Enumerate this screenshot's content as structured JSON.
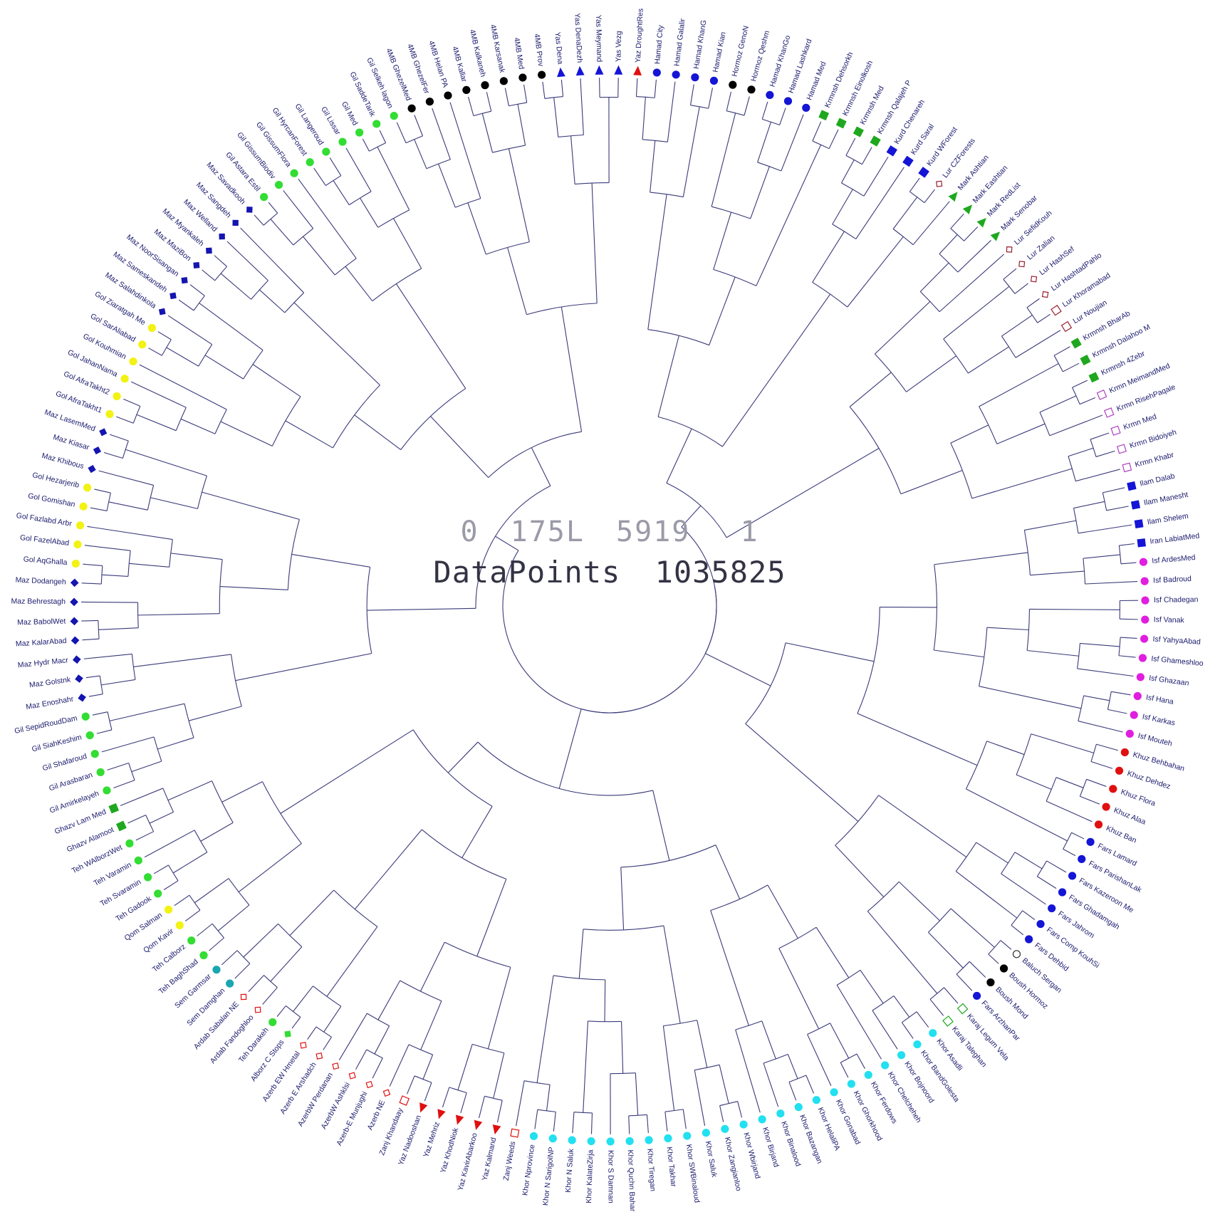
{
  "header": {
    "counter_a": "0",
    "counter_b": "175L",
    "counter_c": "5919",
    "counter_d": "1",
    "datapoints_label": "DataPoints",
    "datapoints_value": "1035825"
  },
  "colors": {
    "black": "#000000",
    "blue": "#1515d6",
    "red": "#e01010",
    "green": "#1fa81f",
    "lime": "#33dd33",
    "magenta": "#e01ee0",
    "purple": "#b040c0",
    "maroon": "#9a2030",
    "cyan": "#22e0f0",
    "yellow": "#f2f214",
    "teal": "#1aa6b0",
    "darkblue": "#1515b0",
    "gray": "#333333"
  },
  "leaves": [
    {
      "label": "Yaz DroughtRes",
      "marker": "triangle",
      "color": "red"
    },
    {
      "label": "Hamad City",
      "marker": "circle",
      "color": "blue"
    },
    {
      "label": "Hamad Galalir",
      "marker": "circle",
      "color": "blue"
    },
    {
      "label": "Hamad KhanG",
      "marker": "circle",
      "color": "blue"
    },
    {
      "label": "Hamad Kian",
      "marker": "circle",
      "color": "blue"
    },
    {
      "label": "Hormoz GenoN",
      "marker": "circle",
      "color": "black"
    },
    {
      "label": "Hormoz Qeshm",
      "marker": "circle",
      "color": "black"
    },
    {
      "label": "Hamad KhanGo",
      "marker": "circle",
      "color": "blue"
    },
    {
      "label": "Hamad Lashkard",
      "marker": "circle",
      "color": "blue"
    },
    {
      "label": "Hamad Med",
      "marker": "circle",
      "color": "blue"
    },
    {
      "label": "Krmnsh Dehsorkh",
      "marker": "square",
      "color": "green"
    },
    {
      "label": "Krmnsh Einolkosh",
      "marker": "square",
      "color": "green"
    },
    {
      "label": "Krmnsh Med",
      "marker": "square",
      "color": "green"
    },
    {
      "label": "Krmnsh Qalajeh P",
      "marker": "square",
      "color": "green"
    },
    {
      "label": "Kurd Chenareh",
      "marker": "square",
      "color": "blue"
    },
    {
      "label": "Kurd Saral",
      "marker": "square",
      "color": "blue"
    },
    {
      "label": "Kurd WForest",
      "marker": "square",
      "color": "blue"
    },
    {
      "label": "Lur CZForests",
      "marker": "diamond-open",
      "color": "maroon"
    },
    {
      "label": "Mark Ashtian",
      "marker": "triangle",
      "color": "green"
    },
    {
      "label": "Mark Eashtian",
      "marker": "triangle",
      "color": "green"
    },
    {
      "label": "Mark RedList",
      "marker": "triangle",
      "color": "green"
    },
    {
      "label": "Mark Senobar",
      "marker": "triangle",
      "color": "green"
    },
    {
      "label": "Lur SefidKouh",
      "marker": "diamond-open",
      "color": "maroon"
    },
    {
      "label": "Lur Zalian",
      "marker": "diamond-open",
      "color": "maroon"
    },
    {
      "label": "Lur HashSef",
      "marker": "diamond-open",
      "color": "maroon"
    },
    {
      "label": "Lur HashtadPahlo",
      "marker": "diamond-open",
      "color": "maroon"
    },
    {
      "label": "Lur Khoramabad",
      "marker": "square-open",
      "color": "maroon"
    },
    {
      "label": "Lur Noujian",
      "marker": "square-open",
      "color": "maroon"
    },
    {
      "label": "Krmnsh BharAb",
      "marker": "square",
      "color": "green"
    },
    {
      "label": "Krmnsh Dalahoo M",
      "marker": "square",
      "color": "green"
    },
    {
      "label": "Krmnsh 4Zebr",
      "marker": "square",
      "color": "green"
    },
    {
      "label": "Krmn MeimandMed",
      "marker": "square-open",
      "color": "purple"
    },
    {
      "label": "Krmn RisehPaqale",
      "marker": "square-open",
      "color": "purple"
    },
    {
      "label": "Krmn Med",
      "marker": "square-open",
      "color": "purple"
    },
    {
      "label": "Krmn Bidoiyeh",
      "marker": "square-open",
      "color": "purple"
    },
    {
      "label": "Krmn Khabr",
      "marker": "square-open",
      "color": "purple"
    },
    {
      "label": "Ilam Dalab",
      "marker": "square",
      "color": "blue"
    },
    {
      "label": "Ilam Manesht",
      "marker": "square",
      "color": "blue"
    },
    {
      "label": "Ilam Shelem",
      "marker": "square",
      "color": "blue"
    },
    {
      "label": "Iran LabiatMed",
      "marker": "square",
      "color": "blue"
    },
    {
      "label": "Isf ArdesMed",
      "marker": "circle",
      "color": "magenta"
    },
    {
      "label": "Isf Badroud",
      "marker": "circle",
      "color": "magenta"
    },
    {
      "label": "Isf Chadegan",
      "marker": "circle",
      "color": "magenta"
    },
    {
      "label": "Isf Vanak",
      "marker": "circle",
      "color": "magenta"
    },
    {
      "label": "Isf YahyaAbad",
      "marker": "circle",
      "color": "magenta"
    },
    {
      "label": "Isf Ghameshloo",
      "marker": "circle",
      "color": "magenta"
    },
    {
      "label": "Isf Ghazaan",
      "marker": "circle",
      "color": "magenta"
    },
    {
      "label": "Isf Hana",
      "marker": "circle",
      "color": "magenta"
    },
    {
      "label": "Isf Karkas",
      "marker": "circle",
      "color": "magenta"
    },
    {
      "label": "Isf Mouteh",
      "marker": "circle",
      "color": "magenta"
    },
    {
      "label": "Khuz Behbahan",
      "marker": "circle",
      "color": "red"
    },
    {
      "label": "Khuz Dehdez",
      "marker": "circle",
      "color": "red"
    },
    {
      "label": "Khuz Flora",
      "marker": "circle",
      "color": "red"
    },
    {
      "label": "Khuz Alaa",
      "marker": "circle",
      "color": "red"
    },
    {
      "label": "Khuz Ban",
      "marker": "circle",
      "color": "red"
    },
    {
      "label": "Fars Lamard",
      "marker": "circle",
      "color": "blue"
    },
    {
      "label": "Fars ParishanLak",
      "marker": "circle",
      "color": "blue"
    },
    {
      "label": "Fars Kazeroon Me",
      "marker": "circle",
      "color": "blue"
    },
    {
      "label": "Fars Ghadamgah",
      "marker": "circle",
      "color": "blue"
    },
    {
      "label": "Fars Jahrom",
      "marker": "circle",
      "color": "blue"
    },
    {
      "label": "Fars Comp KouhSi",
      "marker": "circle",
      "color": "blue"
    },
    {
      "label": "Fars Dehbid",
      "marker": "circle",
      "color": "blue"
    },
    {
      "label": "Baluch Sergan",
      "marker": "circle-open",
      "color": "gray"
    },
    {
      "label": "Boush Hormoz",
      "marker": "circle",
      "color": "black"
    },
    {
      "label": "Boush Mond",
      "marker": "circle",
      "color": "black"
    },
    {
      "label": "Fars ArzhanPar",
      "marker": "circle",
      "color": "blue"
    },
    {
      "label": "Karaj Legum Vela",
      "marker": "square-open",
      "color": "green"
    },
    {
      "label": "Karaj Taleghan",
      "marker": "square-open",
      "color": "green"
    },
    {
      "label": "Khor Asadli",
      "marker": "circle",
      "color": "cyan"
    },
    {
      "label": "Khor BandGolesta",
      "marker": "circle",
      "color": "cyan"
    },
    {
      "label": "Khor Bojnoord",
      "marker": "circle",
      "color": "cyan"
    },
    {
      "label": "Khor Chelcheheh",
      "marker": "circle",
      "color": "cyan"
    },
    {
      "label": "Khor Ferdows",
      "marker": "circle",
      "color": "cyan"
    },
    {
      "label": "Khor Ghorkhood",
      "marker": "circle",
      "color": "cyan"
    },
    {
      "label": "Khor Gonabad",
      "marker": "circle",
      "color": "cyan"
    },
    {
      "label": "Khor HelaliPA",
      "marker": "circle",
      "color": "cyan"
    },
    {
      "label": "Khor Bazangan",
      "marker": "circle",
      "color": "cyan"
    },
    {
      "label": "Khor Binalood",
      "marker": "circle",
      "color": "cyan"
    },
    {
      "label": "Khor Birjand",
      "marker": "circle",
      "color": "cyan"
    },
    {
      "label": "Khor Wbirjand",
      "marker": "circle",
      "color": "cyan"
    },
    {
      "label": "Khor Zangianloo",
      "marker": "circle",
      "color": "cyan"
    },
    {
      "label": "Khor Saluk",
      "marker": "circle",
      "color": "cyan"
    },
    {
      "label": "Khor SWBinaloud",
      "marker": "circle",
      "color": "cyan"
    },
    {
      "label": "Khor Takhar",
      "marker": "circle",
      "color": "cyan"
    },
    {
      "label": "Khor Tiregan",
      "marker": "circle",
      "color": "cyan"
    },
    {
      "label": "Khor Quchn Bahar",
      "marker": "circle",
      "color": "cyan"
    },
    {
      "label": "Khor S Damnan",
      "marker": "circle",
      "color": "cyan"
    },
    {
      "label": "Khor KalateZirja",
      "marker": "circle",
      "color": "cyan"
    },
    {
      "label": "Khor N Saluk",
      "marker": "circle",
      "color": "cyan"
    },
    {
      "label": "Khor N SarigolNP",
      "marker": "circle",
      "color": "cyan"
    },
    {
      "label": "Khor Nprovince",
      "marker": "circle",
      "color": "cyan"
    },
    {
      "label": "Zanj Weeds",
      "marker": "square-open",
      "color": "red"
    },
    {
      "label": "Yaz Kalmand",
      "marker": "triangle",
      "color": "red"
    },
    {
      "label": "Yaz KavirAbarkoo",
      "marker": "triangle",
      "color": "red"
    },
    {
      "label": "Yaz KhodNiok",
      "marker": "triangle",
      "color": "red"
    },
    {
      "label": "Yaz Mehriz",
      "marker": "triangle",
      "color": "red"
    },
    {
      "label": "Yaz Nadooshan",
      "marker": "triangle",
      "color": "red"
    },
    {
      "label": "Zanj Khandaay",
      "marker": "square-open",
      "color": "red"
    },
    {
      "label": "Azerb NE",
      "marker": "diamond-open",
      "color": "red"
    },
    {
      "label": "Azerb-E Munjughi",
      "marker": "diamond-open",
      "color": "red"
    },
    {
      "label": "AzerbW Ashklsi",
      "marker": "diamond-open",
      "color": "red"
    },
    {
      "label": "AzerbW Perdanan",
      "marker": "diamond-open",
      "color": "red"
    },
    {
      "label": "Azerb E Arshadch",
      "marker": "diamond-open",
      "color": "red"
    },
    {
      "label": "Azerb EW Hmetal",
      "marker": "diamond-open",
      "color": "red"
    },
    {
      "label": "Alborz C Stops",
      "marker": "diamond",
      "color": "lime"
    },
    {
      "label": "Teh Darakeh",
      "marker": "circle",
      "color": "lime"
    },
    {
      "label": "Ardab Fandoghloo",
      "marker": "diamond-open",
      "color": "red"
    },
    {
      "label": "Ardab Sabalan NE",
      "marker": "diamond-open",
      "color": "red"
    },
    {
      "label": "Sem Damghan",
      "marker": "circle",
      "color": "teal"
    },
    {
      "label": "Sem Garmsar",
      "marker": "circle",
      "color": "teal"
    },
    {
      "label": "Teh BaghShad",
      "marker": "circle",
      "color": "lime"
    },
    {
      "label": "Teh Calborz",
      "marker": "circle",
      "color": "lime"
    },
    {
      "label": "Qom Kavir",
      "marker": "circle",
      "color": "yellow"
    },
    {
      "label": "Qom Salman",
      "marker": "circle",
      "color": "yellow"
    },
    {
      "label": "Teh Gadook",
      "marker": "circle",
      "color": "lime"
    },
    {
      "label": "Teh Svaramin",
      "marker": "circle",
      "color": "lime"
    },
    {
      "label": "Teh Varamin",
      "marker": "circle",
      "color": "lime"
    },
    {
      "label": "Teh WAlborzWet",
      "marker": "circle",
      "color": "lime"
    },
    {
      "label": "Ghazv Alamoot",
      "marker": "square",
      "color": "green"
    },
    {
      "label": "Ghazv Lam Med",
      "marker": "square",
      "color": "green"
    },
    {
      "label": "Gil Amirkelayeh",
      "marker": "circle",
      "color": "lime"
    },
    {
      "label": "Gil Arasbaran",
      "marker": "circle",
      "color": "lime"
    },
    {
      "label": "Gil Shafaroud",
      "marker": "circle",
      "color": "lime"
    },
    {
      "label": "Gil SiahKeshim",
      "marker": "circle",
      "color": "lime"
    },
    {
      "label": "Gil SepidRoudDam",
      "marker": "circle",
      "color": "lime"
    },
    {
      "label": "Maz Enoshahr",
      "marker": "diamond",
      "color": "darkblue"
    },
    {
      "label": "Maz Golstnk",
      "marker": "diamond",
      "color": "darkblue"
    },
    {
      "label": "Maz Hydr Macr",
      "marker": "diamond",
      "color": "darkblue"
    },
    {
      "label": "Maz KalarAbad",
      "marker": "diamond",
      "color": "darkblue"
    },
    {
      "label": "Maz BabolWet",
      "marker": "diamond",
      "color": "darkblue"
    },
    {
      "label": "Maz Behrestagh",
      "marker": "diamond",
      "color": "darkblue"
    },
    {
      "label": "Maz Dodangeh",
      "marker": "diamond",
      "color": "darkblue"
    },
    {
      "label": "Gol AqGhalla",
      "marker": "circle",
      "color": "yellow"
    },
    {
      "label": "Gol FazelAbad",
      "marker": "circle",
      "color": "yellow"
    },
    {
      "label": "Gol Fazlabd Arbr",
      "marker": "circle",
      "color": "yellow"
    },
    {
      "label": "Gol Gomishan",
      "marker": "circle",
      "color": "yellow"
    },
    {
      "label": "Gol Hezarjerib",
      "marker": "circle",
      "color": "yellow"
    },
    {
      "label": "Maz Khibous",
      "marker": "diamond",
      "color": "darkblue"
    },
    {
      "label": "Maz Kiasar",
      "marker": "diamond",
      "color": "darkblue"
    },
    {
      "label": "Maz LasemMed",
      "marker": "diamond",
      "color": "darkblue"
    },
    {
      "label": "Gol AfraTakht1",
      "marker": "circle",
      "color": "yellow"
    },
    {
      "label": "Gol AfraTakht2",
      "marker": "circle",
      "color": "yellow"
    },
    {
      "label": "Gol JahanNama",
      "marker": "circle",
      "color": "yellow"
    },
    {
      "label": "Gol Kouhmian",
      "marker": "circle",
      "color": "yellow"
    },
    {
      "label": "Gol SarAliabad",
      "marker": "circle",
      "color": "yellow"
    },
    {
      "label": "Gol Ziaratgah Me",
      "marker": "circle",
      "color": "yellow"
    },
    {
      "label": "Maz Salahdinkola",
      "marker": "diamond",
      "color": "darkblue"
    },
    {
      "label": "Maz Sameskandeh",
      "marker": "diamond",
      "color": "darkblue"
    },
    {
      "label": "Maz NoorSisangan",
      "marker": "diamond",
      "color": "darkblue"
    },
    {
      "label": "Maz MaziBon",
      "marker": "diamond",
      "color": "darkblue"
    },
    {
      "label": "Maz Myankaleh",
      "marker": "diamond",
      "color": "darkblue"
    },
    {
      "label": "Maz Welland",
      "marker": "diamond",
      "color": "darkblue"
    },
    {
      "label": "Maz Sangdeh",
      "marker": "diamond",
      "color": "darkblue"
    },
    {
      "label": "Maz Savadkooh",
      "marker": "diamond",
      "color": "darkblue"
    },
    {
      "label": "Gil Astara Estil",
      "marker": "circle",
      "color": "lime"
    },
    {
      "label": "Gil GissumBiodiv",
      "marker": "circle",
      "color": "lime"
    },
    {
      "label": "Gil GissumFlora",
      "marker": "circle",
      "color": "lime"
    },
    {
      "label": "Gil HyrcanForest",
      "marker": "circle",
      "color": "lime"
    },
    {
      "label": "Gil Langeroud",
      "marker": "circle",
      "color": "lime"
    },
    {
      "label": "Gil Lissar",
      "marker": "circle",
      "color": "lime"
    },
    {
      "label": "Gil Med",
      "marker": "circle",
      "color": "lime"
    },
    {
      "label": "Gil SaddeTarik",
      "marker": "circle",
      "color": "lime"
    },
    {
      "label": "Gil Selkeh lagon",
      "marker": "circle",
      "color": "lime"
    },
    {
      "label": "4MB GhezelMed",
      "marker": "circle",
      "color": "black"
    },
    {
      "label": "4MB GhezelFer",
      "marker": "circle",
      "color": "black"
    },
    {
      "label": "4MB Helan PA",
      "marker": "circle",
      "color": "black"
    },
    {
      "label": "4MB Kallar",
      "marker": "circle",
      "color": "black"
    },
    {
      "label": "4MB Kalkaneh",
      "marker": "circle",
      "color": "black"
    },
    {
      "label": "4MB Karsanak",
      "marker": "circle",
      "color": "black"
    },
    {
      "label": "4MB Med",
      "marker": "circle",
      "color": "black"
    },
    {
      "label": "4MB Prov",
      "marker": "circle",
      "color": "black"
    },
    {
      "label": "Yas Dena",
      "marker": "triangle",
      "color": "blue"
    },
    {
      "label": "Yas DenaDezh",
      "marker": "triangle",
      "color": "blue"
    },
    {
      "label": "Yas Meymand",
      "marker": "triangle",
      "color": "blue"
    },
    {
      "label": "Yas Vezg",
      "marker": "triangle",
      "color": "blue"
    }
  ]
}
